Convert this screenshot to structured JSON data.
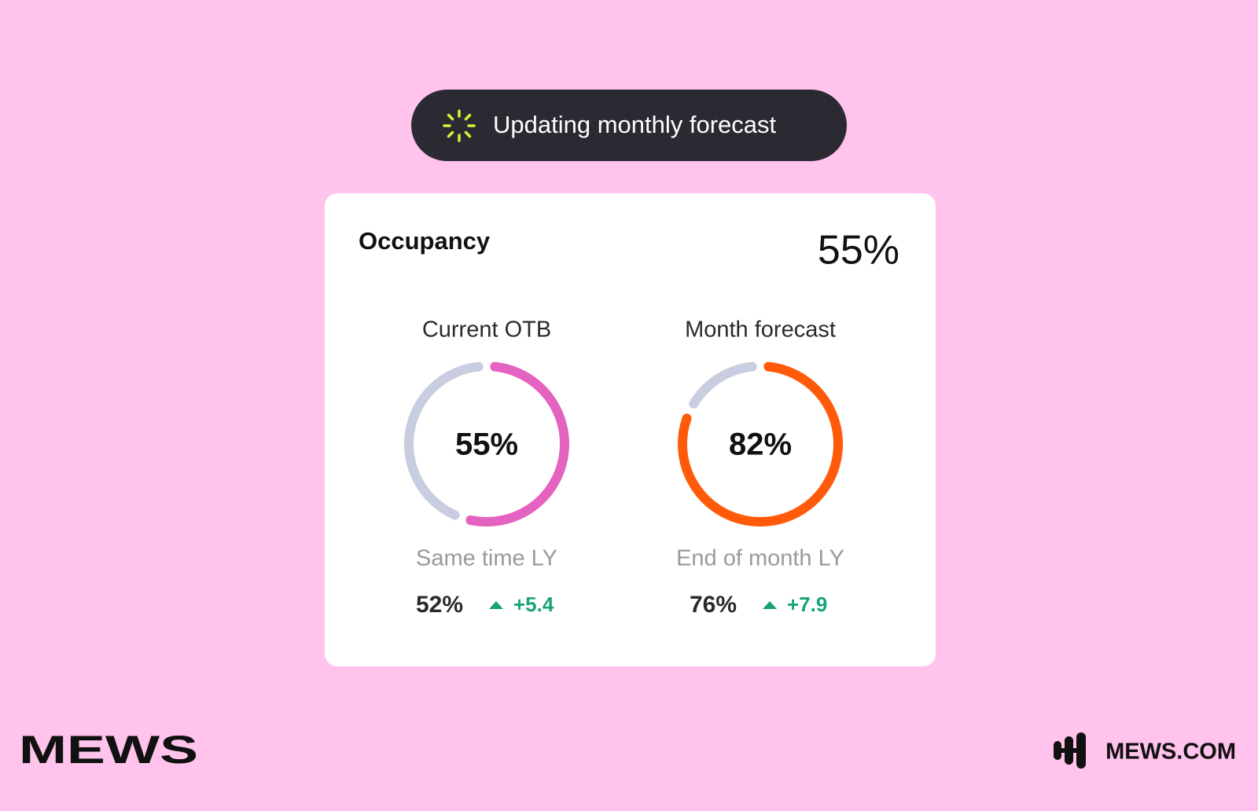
{
  "badge": {
    "text": "Updating monthly forecast"
  },
  "card": {
    "title": "Occupancy",
    "headline": "55%",
    "gauges": [
      {
        "title": "Current OTB",
        "value": 55,
        "label": "55%",
        "color": "#e462c0",
        "track_color": "#c9cde0",
        "comparison_label": "Same time LY",
        "comparison_value": "52%",
        "delta": "+5.4"
      },
      {
        "title": "Month forecast",
        "value": 82,
        "label": "82%",
        "color": "#ff5a0a",
        "track_color": "#c9cde0",
        "comparison_label": "End of month LY",
        "comparison_value": "76%",
        "delta": "+7.9"
      }
    ]
  },
  "footer": {
    "brand": "MEWS",
    "url": "MEWS.COM"
  }
}
